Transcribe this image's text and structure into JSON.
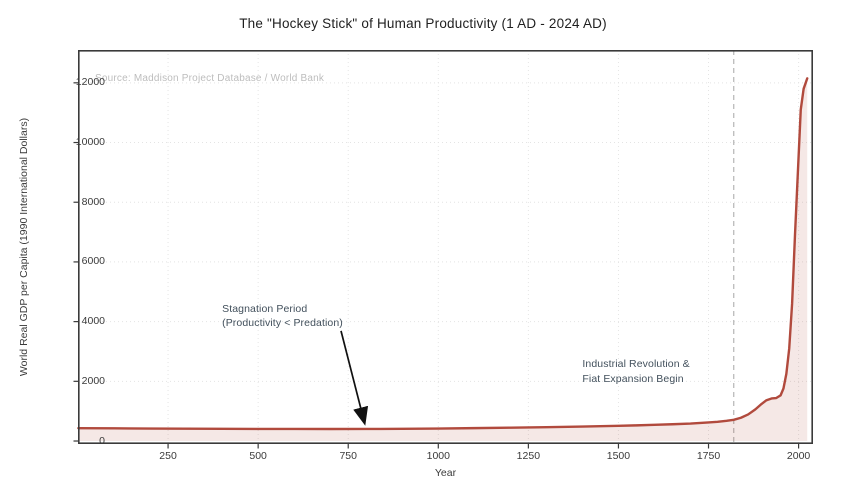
{
  "chart_data": {
    "type": "area",
    "title": "The \"Hockey Stick\" of Human Productivity (1 AD - 2024 AD)",
    "xlabel": "Year",
    "ylabel": "World Real GDP per Capita (1990 International Dollars)",
    "source_note": "Source: Maddison Project Database / World Bank",
    "x_ticks": [
      250,
      500,
      750,
      1000,
      1250,
      1500,
      1750,
      2000
    ],
    "y_ticks": [
      0,
      2000,
      4000,
      6000,
      8000,
      10000,
      12000
    ],
    "xlim": [
      0,
      2040
    ],
    "ylim": [
      -100,
      13100
    ],
    "grid": true,
    "legend": "none",
    "series": [
      {
        "name": "World Real GDP per Capita (1990 International Dollars)",
        "points": [
          [
            1,
            430
          ],
          [
            100,
            424
          ],
          [
            200,
            418
          ],
          [
            300,
            413
          ],
          [
            400,
            409
          ],
          [
            500,
            406
          ],
          [
            600,
            404
          ],
          [
            700,
            403
          ],
          [
            800,
            404
          ],
          [
            900,
            408
          ],
          [
            1000,
            418
          ],
          [
            1100,
            432
          ],
          [
            1200,
            448
          ],
          [
            1300,
            464
          ],
          [
            1400,
            483
          ],
          [
            1500,
            508
          ],
          [
            1550,
            524
          ],
          [
            1600,
            543
          ],
          [
            1650,
            562
          ],
          [
            1700,
            585
          ],
          [
            1750,
            622
          ],
          [
            1775,
            645
          ],
          [
            1800,
            676
          ],
          [
            1820,
            710
          ],
          [
            1840,
            780
          ],
          [
            1860,
            890
          ],
          [
            1880,
            1060
          ],
          [
            1895,
            1220
          ],
          [
            1910,
            1360
          ],
          [
            1925,
            1425
          ],
          [
            1938,
            1440
          ],
          [
            1950,
            1530
          ],
          [
            1958,
            1760
          ],
          [
            1966,
            2250
          ],
          [
            1974,
            3100
          ],
          [
            1982,
            4600
          ],
          [
            1990,
            6900
          ],
          [
            1998,
            9000
          ],
          [
            2006,
            11100
          ],
          [
            2014,
            11800
          ],
          [
            2024,
            12150
          ]
        ]
      }
    ],
    "vline": {
      "x": 1820,
      "style": "dashed",
      "color": "#b5b5b5"
    },
    "annotations": [
      {
        "id": "stagnation",
        "text": "Stagnation Period\n(Productivity < Predation)",
        "x": 400,
        "y": 4650,
        "arrow": {
          "from": [
            730,
            3690
          ],
          "to": [
            795,
            620
          ]
        }
      },
      {
        "id": "industrial",
        "text": "Industrial Revolution &\nFiat Expansion Begin",
        "x": 1400,
        "y": 2800
      }
    ],
    "colors": {
      "line": "#b14a3d",
      "fill": "rgba(177,74,61,0.13)",
      "grid": "#e4e4e4",
      "spine": "#3a3a3a",
      "tick_label": "#3a3a3a",
      "title": "#1f1f1f",
      "annotation_text": "#42505c",
      "source_text": "#bdbdbd",
      "arrow": "#111111"
    }
  }
}
